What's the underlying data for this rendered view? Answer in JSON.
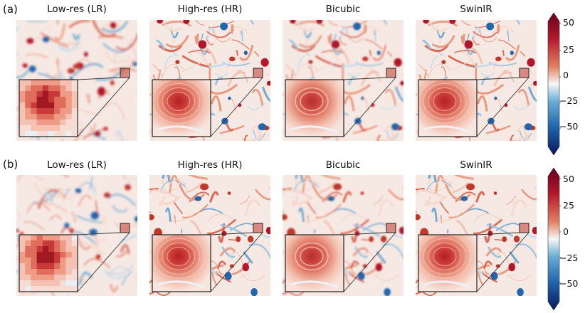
{
  "figure": {
    "rows": [
      {
        "label": "(a)",
        "panels": [
          {
            "title": "Low-res (LR)",
            "kind": "lr"
          },
          {
            "title": "High-res (HR)",
            "kind": "hr"
          },
          {
            "title": "Bicubic",
            "kind": "bicubic"
          },
          {
            "title": "SwinIR",
            "kind": "swinir"
          }
        ]
      },
      {
        "label": "(b)",
        "panels": [
          {
            "title": "Low-res (LR)",
            "kind": "lr"
          },
          {
            "title": "High-res (HR)",
            "kind": "hr"
          },
          {
            "title": "Bicubic",
            "kind": "bicubic"
          },
          {
            "title": "SwinIR",
            "kind": "swinir"
          }
        ]
      }
    ],
    "colorbar": {
      "ticks": [
        "50",
        "25",
        "0",
        "−25",
        "−50"
      ],
      "range": [
        -65,
        60
      ],
      "colors": {
        "max": "#67001f",
        "high": "#b2182b",
        "mid_high": "#e08262",
        "zero": "#f7f7f7",
        "mid_low": "#6baed6",
        "low": "#2166ac",
        "min": "#08175a"
      }
    }
  }
}
